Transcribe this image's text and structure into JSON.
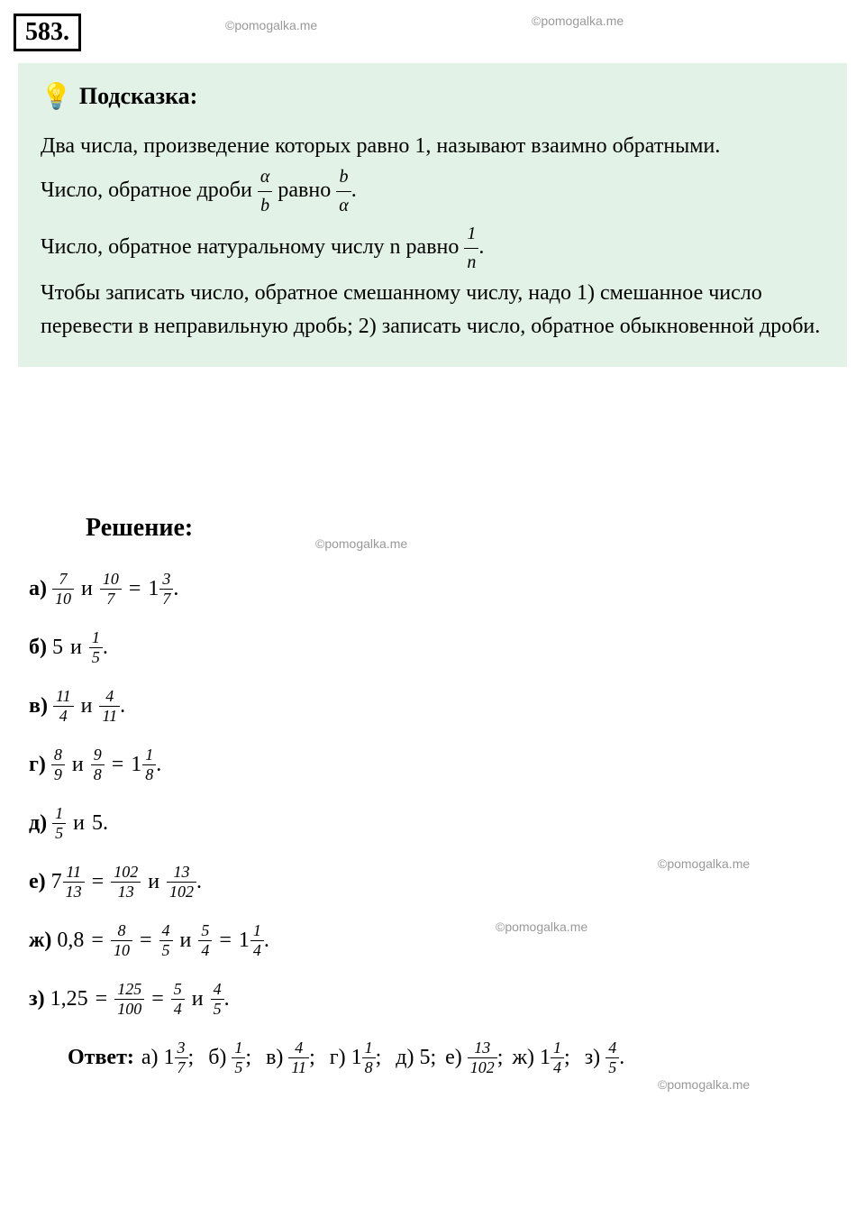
{
  "problem_number": "583.",
  "watermark_text": "©pomogalka.me",
  "hint": {
    "title": "Подсказка:",
    "bulb_icon": "💡",
    "line1": "Два числа, произведение которых равно 1, называют взаимно обратными.",
    "line2_pre": "Число, обратное дроби ",
    "line2_mid": " равно ",
    "line2_end": ".",
    "frac1_top": "α",
    "frac1_bot": "b",
    "frac2_top": "b",
    "frac2_bot": "α",
    "line3_pre": "Число, обратное натуральному числу n  равно ",
    "line3_end": ".",
    "frac3_top": "1",
    "frac3_bot": "n",
    "line4": "Чтобы записать число, обратное смешанному числу, надо 1) смешанное число перевести в неправильную дробь; 2) записать число, обратное обыкновенной дроби."
  },
  "solution": {
    "title": "Решение:",
    "items": {
      "a": {
        "letter": "а)",
        "f1_top": "7",
        "f1_bot": "10",
        "conn1": "и",
        "f2_top": "10",
        "f2_bot": "7",
        "eq": "=",
        "mixed_whole": "1",
        "f3_top": "3",
        "f3_bot": "7",
        "end": "."
      },
      "b": {
        "letter": "б)",
        "val1": "5",
        "conn1": "и",
        "f1_top": "1",
        "f1_bot": "5",
        "end": "."
      },
      "v": {
        "letter": "в)",
        "f1_top": "11",
        "f1_bot": "4",
        "conn1": "и",
        "f2_top": "4",
        "f2_bot": "11",
        "end": "."
      },
      "g": {
        "letter": "г)",
        "f1_top": "8",
        "f1_bot": "9",
        "conn1": "и",
        "f2_top": "9",
        "f2_bot": "8",
        "eq": "=",
        "mixed_whole": "1",
        "f3_top": "1",
        "f3_bot": "8",
        "end": "."
      },
      "d": {
        "letter": "д)",
        "f1_top": "1",
        "f1_bot": "5",
        "conn1": "и",
        "val2": "5.",
        "end": ""
      },
      "e": {
        "letter": "е)",
        "mixed_whole1": "7",
        "f1_top": "11",
        "f1_bot": "13",
        "eq1": "=",
        "f2_top": "102",
        "f2_bot": "13",
        "conn1": "и",
        "f3_top": "13",
        "f3_bot": "102",
        "end": "."
      },
      "zh": {
        "letter": "ж)",
        "val1": "0,8",
        "eq1": "=",
        "f1_top": "8",
        "f1_bot": "10",
        "eq2": "=",
        "f2_top": "4",
        "f2_bot": "5",
        "conn1": "и",
        "f3_top": "5",
        "f3_bot": "4",
        "eq3": "=",
        "mixed_whole": "1",
        "f4_top": "1",
        "f4_bot": "4",
        "end": "."
      },
      "z": {
        "letter": "з)",
        "val1": "1,25",
        "eq1": "=",
        "f1_top": "125",
        "f1_bot": "100",
        "eq2": "=",
        "f2_top": "5",
        "f2_bot": "4",
        "conn1": "и",
        "f3_top": "4",
        "f3_bot": "5",
        "end": "."
      }
    }
  },
  "answer": {
    "label": "Ответ:",
    "a_letter": "а)",
    "a_whole": "1",
    "a_top": "3",
    "a_bot": "7",
    "b_letter": "б)",
    "b_top": "1",
    "b_bot": "5",
    "v_letter": "в)",
    "v_top": "4",
    "v_bot": "11",
    "g_letter": "г)",
    "g_whole": "1",
    "g_top": "1",
    "g_bot": "8",
    "d_letter": "д)",
    "d_val": "5",
    "e_letter": "е)",
    "e_top": "13",
    "e_bot": "102",
    "zh_letter": "ж)",
    "zh_whole": "1",
    "zh_top": "1",
    "zh_bot": "4",
    "z_letter": "з)",
    "z_top": "4",
    "z_bot": "5",
    "sep": ";",
    "end": "."
  },
  "colors": {
    "hint_bg": "#e2f2e7",
    "watermark": "#999999",
    "text": "#000000"
  }
}
